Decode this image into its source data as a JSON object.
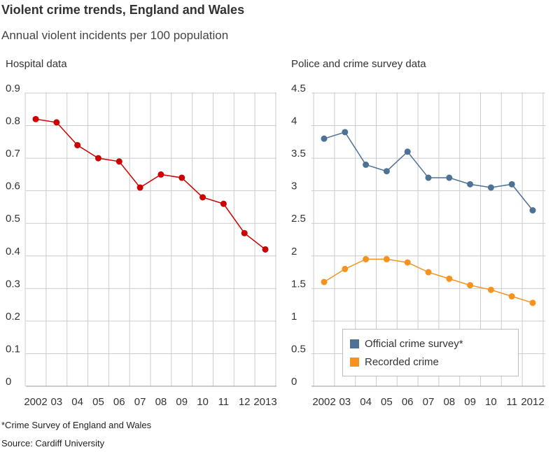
{
  "title": "Violent crime trends, England and Wales",
  "subtitle": "Annual violent incidents per 100 population",
  "footnote": "*Crime Survey of England and Wales",
  "source": "Source: Cardiff University",
  "chart_data": [
    {
      "type": "line",
      "title": "Hospital data",
      "categories": [
        "2002",
        "03",
        "04",
        "05",
        "06",
        "07",
        "08",
        "09",
        "10",
        "11",
        "12",
        "2013"
      ],
      "ylim": [
        0,
        0.9
      ],
      "yticks": [
        "0",
        "0.1",
        "0.2",
        "0.3",
        "0.4",
        "0.5",
        "0.6",
        "0.7",
        "0.8",
        "0.9"
      ],
      "grid": true,
      "series": [
        {
          "values": [
            0.82,
            0.81,
            0.74,
            0.7,
            0.69,
            0.61,
            0.65,
            0.64,
            0.58,
            0.56,
            0.47,
            0.42
          ],
          "color": "#cc0000"
        }
      ]
    },
    {
      "type": "line",
      "title": "Police and crime survey data",
      "categories": [
        "2002",
        "03",
        "04",
        "05",
        "06",
        "07",
        "08",
        "09",
        "10",
        "11",
        "2012"
      ],
      "ylim": [
        0,
        4.5
      ],
      "yticks": [
        "0",
        "0.5",
        "1",
        "1.5",
        "2",
        "2.5",
        "3",
        "3.5",
        "4",
        "4.5"
      ],
      "grid": true,
      "legend_position": "bottom-right",
      "series": [
        {
          "name": "Official crime survey*",
          "values": [
            3.8,
            3.9,
            3.4,
            3.3,
            3.6,
            3.2,
            3.2,
            3.1,
            3.05,
            3.1,
            2.7
          ],
          "color": "#4e7196"
        },
        {
          "name": "Recorded crime",
          "values": [
            1.6,
            1.8,
            1.95,
            1.95,
            1.9,
            1.75,
            1.65,
            1.55,
            1.48,
            1.38,
            1.28
          ],
          "color": "#f6921e"
        }
      ]
    }
  ]
}
